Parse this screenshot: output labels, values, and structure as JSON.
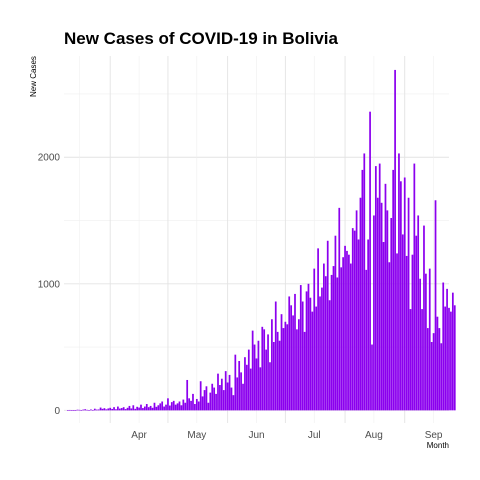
{
  "chart_data": {
    "type": "bar",
    "title": "New Cases of COVID-19 in Bolivia",
    "xlabel": "Month",
    "ylabel": "New Cases",
    "x_ticks": [
      "Apr",
      "May",
      "Jun",
      "Jul",
      "Aug",
      "Sep"
    ],
    "y_ticks": [
      0,
      1000,
      2000
    ],
    "xlim": [
      "2020-03-08",
      "2020-09-24"
    ],
    "ylim": [
      -100,
      2800
    ],
    "grid": true,
    "legend": "none",
    "bar_color": "#8b00ee",
    "start_date": "2020-03-10",
    "values": [
      0,
      3,
      2,
      0,
      0,
      5,
      4,
      2,
      6,
      9,
      4,
      2,
      7,
      3,
      13,
      6,
      7,
      22,
      12,
      17,
      8,
      15,
      20,
      11,
      25,
      9,
      30,
      14,
      18,
      25,
      10,
      20,
      35,
      15,
      40,
      12,
      28,
      22,
      45,
      18,
      30,
      50,
      25,
      35,
      20,
      60,
      28,
      40,
      55,
      70,
      30,
      45,
      95,
      38,
      65,
      75,
      45,
      55,
      70,
      40,
      85,
      60,
      240,
      95,
      75,
      130,
      50,
      90,
      70,
      230,
      110,
      160,
      190,
      60,
      140,
      210,
      180,
      130,
      290,
      200,
      250,
      160,
      310,
      220,
      280,
      180,
      120,
      440,
      260,
      390,
      300,
      210,
      420,
      360,
      480,
      330,
      630,
      520,
      410,
      550,
      340,
      660,
      640,
      480,
      600,
      380,
      720,
      540,
      860,
      620,
      550,
      760,
      650,
      700,
      680,
      900,
      830,
      750,
      920,
      640,
      720,
      990,
      860,
      620,
      940,
      1000,
      890,
      780,
      1120,
      820,
      1280,
      900,
      970,
      1160,
      1060,
      1340,
      870,
      1070,
      1140,
      1380,
      1050,
      1600,
      1130,
      1210,
      1300,
      1260,
      1230,
      1160,
      1440,
      1420,
      1580,
      1350,
      1680,
      1900,
      2030,
      1110,
      1350,
      2360,
      520,
      1540,
      1930,
      1680,
      1950,
      1640,
      1330,
      1790,
      1580,
      1170,
      1520,
      1900,
      2690,
      1240,
      2030,
      1810,
      1390,
      1840,
      1220,
      1680,
      800,
      1230,
      1950,
      1380,
      1540,
      1040,
      800,
      1460,
      1080,
      650,
      1120,
      540,
      610,
      1660,
      740,
      650,
      530,
      1010,
      820,
      960,
      810,
      780,
      930,
      830
    ]
  }
}
